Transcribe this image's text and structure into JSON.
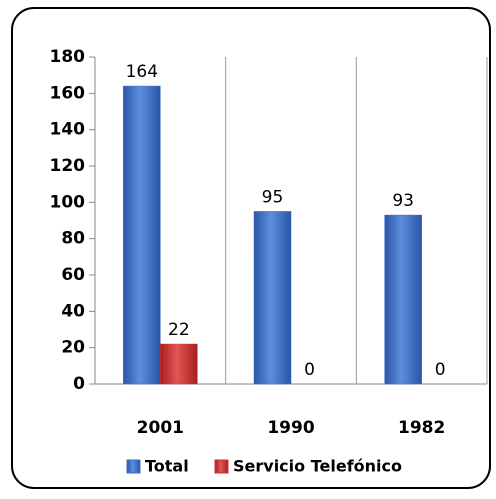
{
  "chart_data": {
    "type": "bar",
    "categories": [
      "2001",
      "1990",
      "1982"
    ],
    "series": [
      {
        "name": "Total",
        "color": "#3a6fc4",
        "values": [
          164,
          95,
          93
        ]
      },
      {
        "name": "Servicio Telefónico",
        "color": "#d03030",
        "values": [
          22,
          0,
          0
        ]
      }
    ],
    "ylim": [
      0,
      180
    ],
    "yticks": [
      0,
      20,
      40,
      60,
      80,
      100,
      120,
      140,
      160,
      180
    ],
    "grid": true,
    "legend": "bottom"
  }
}
